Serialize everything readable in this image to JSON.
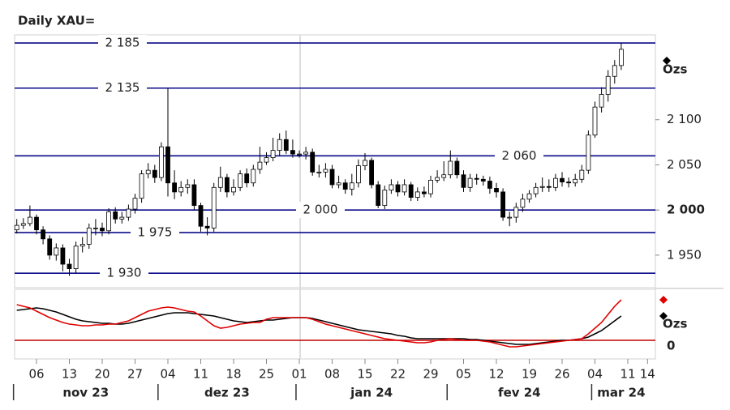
{
  "chart_data": [
    {
      "type": "candlestick",
      "title": "Daily XAU=",
      "unit": "Ozs",
      "categories": [
        null,
        null,
        null,
        "06",
        null,
        null,
        null,
        null,
        "13",
        null,
        null,
        null,
        null,
        "20",
        null,
        null,
        null,
        null,
        "27",
        null,
        null,
        null,
        null,
        "04",
        null,
        null,
        null,
        null,
        "11",
        null,
        null,
        null,
        null,
        "18",
        null,
        null,
        null,
        null,
        "25",
        null,
        null,
        null,
        null,
        "01",
        null,
        null,
        null,
        null,
        "08",
        null,
        null,
        null,
        null,
        "15",
        null,
        null,
        null,
        null,
        "22",
        null,
        null,
        null,
        null,
        "29",
        null,
        null,
        null,
        null,
        "05",
        null,
        null,
        null,
        null,
        "12",
        null,
        null,
        null,
        null,
        "19",
        null,
        null,
        null,
        null,
        "26",
        null,
        null,
        null,
        null,
        "04",
        null,
        null,
        null,
        null,
        "11",
        null,
        null,
        "14"
      ],
      "month_labels": [
        "nov 23",
        "dez 23",
        "jan 24",
        "fev 24",
        "mar 24"
      ],
      "open": [
        1978,
        1983,
        1985,
        1992,
        1978,
        1968,
        1950,
        1958,
        1940,
        1935,
        1960,
        1962,
        1980,
        1980,
        1977,
        1998,
        1990,
        1992,
        2001,
        2013,
        2040,
        2044,
        2036,
        2070,
        2030,
        2020,
        2025,
        2028,
        2005,
        1982,
        1980,
        2025,
        2036,
        2020,
        2025,
        2040,
        2030,
        2045,
        2053,
        2058,
        2066,
        2078,
        2066,
        2062,
        2062,
        2064,
        2042,
        2042,
        2045,
        2028,
        2030,
        2023,
        2030,
        2049,
        2055,
        2028,
        2005,
        2022,
        2028,
        2020,
        2028,
        2014,
        2020,
        2018,
        2033,
        2036,
        2039,
        2054,
        2039,
        2025,
        2035,
        2034,
        2032,
        2024,
        2020,
        1992,
        1992,
        2003,
        2012,
        2018,
        2025,
        2026,
        2025,
        2035,
        2031,
        2030,
        2034,
        2044,
        2083,
        2114,
        2128,
        2148,
        2160,
        null,
        null,
        null,
        null
      ],
      "high": [
        1990,
        1991,
        2005,
        1995,
        1982,
        1972,
        1963,
        1962,
        1946,
        1965,
        1970,
        1985,
        1990,
        1986,
        2002,
        2003,
        1998,
        2006,
        2018,
        2044,
        2052,
        2050,
        2075,
        2135,
        2044,
        2032,
        2034,
        2034,
        2008,
        1992,
        2030,
        2048,
        2040,
        2034,
        2044,
        2046,
        2050,
        2070,
        2064,
        2080,
        2085,
        2088,
        2078,
        2066,
        2070,
        2068,
        2050,
        2052,
        2050,
        2038,
        2034,
        2040,
        2056,
        2063,
        2058,
        2032,
        2027,
        2034,
        2032,
        2034,
        2031,
        2025,
        2026,
        2038,
        2044,
        2054,
        2066,
        2058,
        2044,
        2040,
        2040,
        2038,
        2037,
        2030,
        2024,
        1998,
        2008,
        2018,
        2022,
        2030,
        2036,
        2034,
        2040,
        2042,
        2036,
        2040,
        2050,
        2088,
        2120,
        2136,
        2155,
        2166,
        2185,
        null,
        null,
        null,
        null
      ],
      "low": [
        1974,
        1979,
        1982,
        1973,
        1962,
        1945,
        1944,
        1932,
        1927,
        1930,
        1953,
        1957,
        1972,
        1971,
        1973,
        1985,
        1985,
        1988,
        1996,
        2008,
        2035,
        2030,
        2032,
        2015,
        2012,
        2015,
        2018,
        2000,
        1976,
        1972,
        1976,
        2020,
        2014,
        2016,
        2021,
        2025,
        2026,
        2040,
        2050,
        2054,
        2060,
        2062,
        2058,
        2058,
        2056,
        2038,
        2036,
        2036,
        2024,
        2024,
        2018,
        2016,
        2025,
        2044,
        2024,
        2002,
        2001,
        2018,
        2015,
        2016,
        2010,
        2010,
        2014,
        2014,
        2030,
        2032,
        2035,
        2035,
        2020,
        2020,
        2028,
        2027,
        2018,
        2014,
        1988,
        1982,
        1986,
        1998,
        2008,
        2014,
        2020,
        2020,
        2021,
        2026,
        2025,
        2026,
        2030,
        2040,
        2080,
        2108,
        2120,
        2140,
        2155,
        null,
        null,
        null,
        null
      ],
      "close": [
        1983,
        1985,
        1992,
        1978,
        1968,
        1950,
        1958,
        1940,
        1935,
        1960,
        1962,
        1980,
        1980,
        1977,
        1998,
        1990,
        1992,
        2001,
        2013,
        2040,
        2044,
        2036,
        2070,
        2030,
        2020,
        2025,
        2028,
        2005,
        1982,
        1980,
        2025,
        2036,
        2020,
        2025,
        2040,
        2030,
        2045,
        2053,
        2058,
        2066,
        2078,
        2066,
        2062,
        2062,
        2064,
        2042,
        2042,
        2045,
        2028,
        2030,
        2023,
        2030,
        2049,
        2055,
        2028,
        2005,
        2022,
        2028,
        2020,
        2028,
        2014,
        2020,
        2018,
        2033,
        2036,
        2039,
        2054,
        2039,
        2025,
        2035,
        2034,
        2032,
        2024,
        2020,
        1992,
        1992,
        2003,
        2012,
        2018,
        2025,
        2026,
        2025,
        2035,
        2031,
        2030,
        2034,
        2044,
        2083,
        2114,
        2128,
        2148,
        2160,
        2178,
        null,
        null,
        null,
        null
      ],
      "levels": [
        {
          "value": 2185,
          "label": "2 185"
        },
        {
          "value": 2135,
          "label": "2 135"
        },
        {
          "value": 2060,
          "label": "2 060"
        },
        {
          "value": 2000,
          "label": "2 000"
        },
        {
          "value": 1975,
          "label": "1 975"
        },
        {
          "value": 1930,
          "label": "1 930"
        }
      ],
      "level_color": "#0a0a8a",
      "ylim": [
        1914,
        2194
      ],
      "yticks": [
        {
          "value": 2100,
          "label": "2 100"
        },
        {
          "value": 2050,
          "label": "2 050"
        },
        {
          "value": 2000,
          "label": "2 000"
        },
        {
          "value": 1950,
          "label": "1 950"
        }
      ]
    },
    {
      "type": "line",
      "unit": "Ozs",
      "series": [
        {
          "color": "#000000",
          "values": [
            37,
            38,
            39,
            40,
            39,
            37,
            35,
            32,
            29,
            26,
            24,
            23,
            22,
            21,
            21,
            20,
            20,
            21,
            23,
            25,
            27,
            29,
            31,
            33,
            34,
            34,
            34,
            33,
            32,
            31,
            30,
            28,
            26,
            24,
            23,
            22,
            23,
            24,
            25,
            25,
            26,
            27,
            28,
            28,
            28,
            27,
            25,
            23,
            21,
            19,
            17,
            15,
            13,
            12,
            11,
            10,
            9,
            8,
            6,
            5,
            3,
            2,
            2,
            2,
            2,
            2,
            2,
            2,
            2,
            1,
            1,
            0,
            -1,
            -2,
            -3,
            -4,
            -5,
            -5,
            -5,
            -4,
            -3,
            -2,
            -1,
            0,
            0,
            1,
            2,
            4,
            8,
            12,
            18,
            24,
            30,
            null,
            null,
            null,
            null
          ]
        },
        {
          "color": "#e00000",
          "values": [
            44,
            42,
            40,
            36,
            32,
            28,
            25,
            22,
            20,
            19,
            18,
            18,
            19,
            19,
            20,
            20,
            22,
            24,
            28,
            32,
            36,
            38,
            40,
            41,
            40,
            38,
            36,
            35,
            30,
            24,
            18,
            15,
            16,
            18,
            20,
            21,
            22,
            22,
            26,
            28,
            28,
            28,
            28,
            28,
            28,
            26,
            23,
            20,
            18,
            16,
            14,
            12,
            10,
            8,
            6,
            4,
            2,
            1,
            0,
            -1,
            -2,
            -3,
            -3,
            -2,
            0,
            1,
            2,
            1,
            0,
            0,
            0,
            -1,
            -2,
            -4,
            -6,
            -8,
            -8,
            -7,
            -6,
            -5,
            -4,
            -3,
            -2,
            -1,
            0,
            1,
            2,
            8,
            15,
            22,
            32,
            42,
            50,
            null,
            null,
            null,
            null
          ]
        }
      ],
      "zero_color": "#c00000",
      "ylim": [
        -23,
        63
      ],
      "yticks": [
        0
      ]
    }
  ]
}
